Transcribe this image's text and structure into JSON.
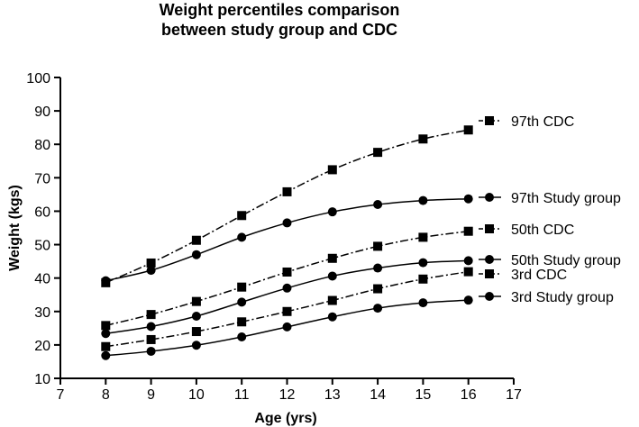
{
  "chart_data": {
    "type": "line",
    "title_line1": "Weight percentiles comparison",
    "title_line2": "between study group and CDC",
    "xlabel": "Age (yrs)",
    "ylabel": "Weight (kgs)",
    "xlim": [
      7,
      17
    ],
    "ylim": [
      10,
      100
    ],
    "xticks": [
      7,
      8,
      9,
      10,
      11,
      12,
      13,
      14,
      15,
      16,
      17
    ],
    "yticks": [
      10,
      20,
      30,
      40,
      50,
      60,
      70,
      80,
      90,
      100
    ],
    "x": [
      8,
      9,
      10,
      11,
      12,
      13,
      14,
      15,
      16
    ],
    "grid": false,
    "legend_placement": "right, at end of each line",
    "series": [
      {
        "name": "97th CDC",
        "marker": "square",
        "line": "dash-dot",
        "values": [
          38.6,
          44.5,
          51.3,
          58.7,
          65.8,
          72.4,
          77.6,
          81.6,
          84.3
        ]
      },
      {
        "name": "97th Study group",
        "marker": "circle",
        "line": "solid",
        "values": [
          39.2,
          42.3,
          47.0,
          52.2,
          56.5,
          59.8,
          62.0,
          63.2,
          63.7
        ]
      },
      {
        "name": "50th CDC",
        "marker": "square",
        "line": "dash-dot",
        "values": [
          25.8,
          29.1,
          33.0,
          37.3,
          41.8,
          45.9,
          49.5,
          52.2,
          54.0
        ]
      },
      {
        "name": "50th Study group",
        "marker": "circle",
        "line": "solid",
        "values": [
          23.4,
          25.5,
          28.6,
          32.8,
          37.0,
          40.6,
          43.0,
          44.6,
          45.2
        ]
      },
      {
        "name": "3rd CDC",
        "marker": "square",
        "line": "dash-dot",
        "values": [
          19.5,
          21.6,
          24.0,
          26.9,
          30.0,
          33.3,
          36.8,
          39.7,
          41.9
        ]
      },
      {
        "name": "3rd Study group",
        "marker": "circle",
        "line": "solid",
        "values": [
          16.8,
          18.1,
          19.9,
          22.4,
          25.4,
          28.4,
          31.0,
          32.6,
          33.4
        ]
      }
    ],
    "colors": {
      "line": "#000000",
      "marker": "#000000"
    }
  }
}
